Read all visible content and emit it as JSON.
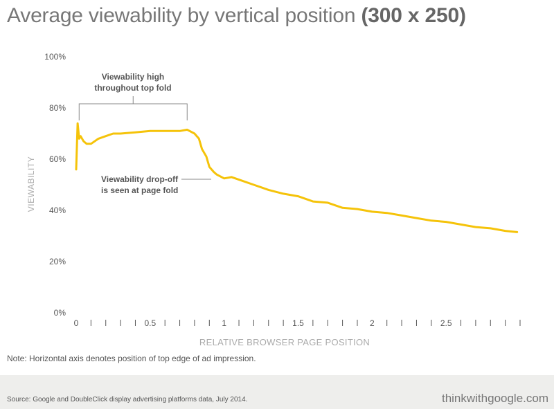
{
  "title": {
    "main": "Average viewability by vertical position ",
    "bold": "(300 x 250)"
  },
  "note": "Note: Horizontal axis denotes position of top edge of ad impression.",
  "footer": {
    "source": "Source: Google and DoubleClick display advertising platforms data, July 2014.",
    "brand": "thinkwithgoogle.com"
  },
  "colors": {
    "line": "#f5c30a",
    "text": "#777777",
    "axis": "#555555",
    "footer_bg": "#eeeeec"
  },
  "chart_data": {
    "type": "line",
    "title": "Average viewability by vertical position (300 x 250)",
    "xlabel": "RELATIVE BROWSER PAGE POSITION",
    "ylabel": "VIEWABILITY",
    "xlim": [
      0,
      3.0
    ],
    "ylim": [
      0,
      100
    ],
    "x_ticks": [
      0,
      0.5,
      1,
      1.5,
      2,
      2.5
    ],
    "x_tick_labels": [
      "0",
      "0.5",
      "1",
      "1.5",
      "2",
      "2.5"
    ],
    "minor_tick_step": 0.1,
    "y_ticks": [
      0,
      20,
      40,
      60,
      80,
      100
    ],
    "y_tick_labels": [
      "0%",
      "20%",
      "40%",
      "60%",
      "80%",
      "100%"
    ],
    "grid": false,
    "series": [
      {
        "x": [
          0,
          0.01,
          0.02,
          0.03,
          0.05,
          0.07,
          0.1,
          0.15,
          0.2,
          0.25,
          0.3,
          0.4,
          0.5,
          0.6,
          0.7,
          0.75,
          0.8,
          0.83,
          0.85,
          0.88,
          0.9,
          0.93,
          0.95,
          1.0,
          1.05,
          1.1,
          1.2,
          1.3,
          1.4,
          1.5,
          1.6,
          1.7,
          1.8,
          1.9,
          2.0,
          2.1,
          2.2,
          2.3,
          2.4,
          2.5,
          2.6,
          2.7,
          2.8,
          2.9,
          2.98
        ],
        "y": [
          56,
          74,
          68,
          69,
          67,
          66,
          66,
          68,
          69,
          70,
          70,
          70.5,
          71,
          71,
          71,
          71.5,
          70,
          68,
          64,
          61,
          57,
          55,
          54,
          52.5,
          53,
          52,
          50,
          48,
          46.5,
          45.5,
          43.5,
          43,
          41,
          40.5,
          39.5,
          39,
          38,
          37,
          36,
          35.5,
          34.5,
          33.5,
          33,
          32,
          31.5
        ]
      }
    ],
    "annotations": [
      {
        "text_lines": [
          "Viewability high",
          "throughout top fold"
        ],
        "x_start": 0.02,
        "x_end": 0.75
      },
      {
        "text_lines": [
          "Viewability drop-off",
          "is seen at page fold"
        ],
        "x": 0.92,
        "y": 54
      }
    ]
  }
}
